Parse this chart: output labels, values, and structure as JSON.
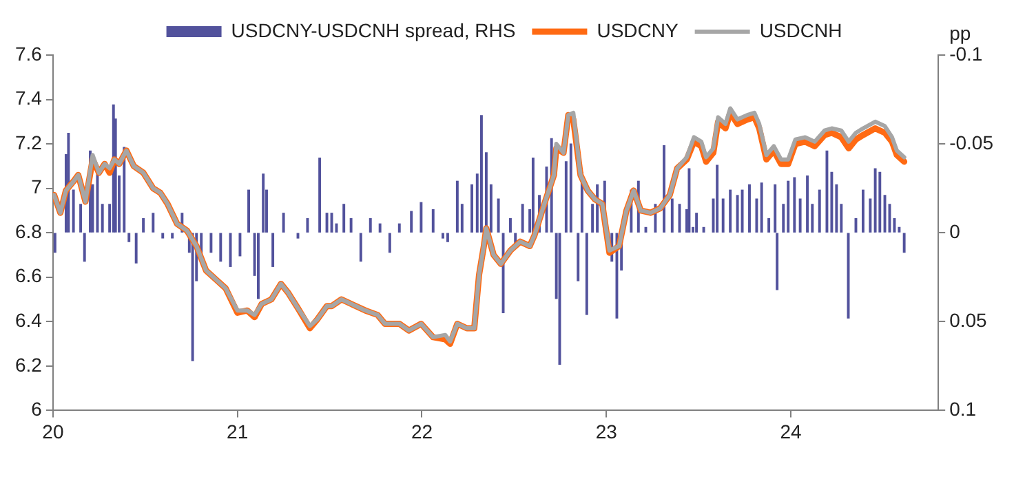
{
  "chart_data": {
    "type": "line",
    "legend": "top",
    "grid": false,
    "y2label": "pp",
    "xlim": [
      2020,
      2024.8
    ],
    "xticks": [
      {
        "value": 2020,
        "label": "20"
      },
      {
        "value": 2021,
        "label": "21"
      },
      {
        "value": 2022,
        "label": "22"
      },
      {
        "value": 2023,
        "label": "23"
      },
      {
        "value": 2024,
        "label": "24"
      }
    ],
    "ylim": [
      6,
      7.6
    ],
    "yticks": [
      6,
      6.2,
      6.4,
      6.6,
      6.8,
      7,
      7.2,
      7.4,
      7.6
    ],
    "y2lim": [
      0.1,
      -0.1
    ],
    "y2ticks": [
      -0.1,
      -0.05,
      0,
      0.05,
      0.1
    ],
    "x": [
      2020.006,
      2020.04,
      2020.07,
      2020.11,
      2020.137,
      2020.176,
      2020.215,
      2020.249,
      2020.28,
      2020.307,
      2020.333,
      2020.359,
      2020.398,
      2020.438,
      2020.49,
      2020.543,
      2020.582,
      2020.621,
      2020.673,
      2020.726,
      2020.778,
      2020.83,
      2020.883,
      2020.936,
      2021.0,
      2021.053,
      2021.093,
      2021.132,
      2021.184,
      2021.236,
      2021.275,
      2021.328,
      2021.393,
      2021.433,
      2021.485,
      2021.511,
      2021.564,
      2021.616,
      2021.694,
      2021.76,
      2021.8,
      2021.878,
      2021.93,
      2021.996,
      2022.061,
      2022.127,
      2022.153,
      2022.192,
      2022.244,
      2022.284,
      2022.31,
      2022.336,
      2022.349,
      2022.389,
      2022.428,
      2022.48,
      2022.533,
      2022.585,
      2022.611,
      2022.664,
      2022.716,
      2022.729,
      2022.768,
      2022.794,
      2022.821,
      2022.86,
      2022.899,
      2022.939,
      2022.978,
      2023.017,
      2023.069,
      2023.109,
      2023.148,
      2023.187,
      2023.24,
      2023.292,
      2023.344,
      2023.384,
      2023.436,
      2023.475,
      2023.515,
      2023.541,
      2023.58,
      2023.606,
      2023.646,
      2023.672,
      2023.711,
      2023.764,
      2023.803,
      2023.829,
      2023.868,
      2023.908,
      2023.947,
      2023.986,
      2024.025,
      2024.078,
      2024.13,
      2024.183,
      2024.222,
      2024.274,
      2024.314,
      2024.353,
      2024.392,
      2024.458,
      2024.51,
      2024.549,
      2024.575,
      2024.615
    ],
    "series": [
      {
        "name": "USDCNY-USDCNH spread, RHS",
        "type": "bar",
        "axis": "y2",
        "color": "#52529c",
        "x": [
          2020.011,
          2020.071,
          2020.084,
          2020.111,
          2020.15,
          2020.171,
          2020.202,
          2020.215,
          2020.241,
          2020.268,
          2020.307,
          2020.328,
          2020.339,
          2020.359,
          2020.386,
          2020.412,
          2020.451,
          2020.49,
          2020.543,
          2020.595,
          2020.647,
          2020.7,
          2020.739,
          2020.757,
          2020.778,
          2020.804,
          2020.857,
          2020.909,
          2020.962,
          2021.014,
          2021.061,
          2021.093,
          2021.113,
          2021.14,
          2021.158,
          2021.192,
          2021.25,
          2021.328,
          2021.38,
          2021.446,
          2021.485,
          2021.511,
          2021.537,
          2021.577,
          2021.616,
          2021.669,
          2021.721,
          2021.773,
          2021.826,
          2021.878,
          2021.943,
          2021.996,
          2022.061,
          2022.114,
          2022.14,
          2022.192,
          2022.218,
          2022.271,
          2022.3,
          2022.323,
          2022.349,
          2022.375,
          2022.415,
          2022.441,
          2022.48,
          2022.507,
          2022.546,
          2022.585,
          2022.603,
          2022.637,
          2022.676,
          2022.703,
          2022.729,
          2022.747,
          2022.782,
          2022.808,
          2022.847,
          2022.868,
          2022.894,
          2022.925,
          2022.951,
          2022.991,
          2023.03,
          2023.057,
          2023.082,
          2023.135,
          2023.174,
          2023.214,
          2023.266,
          2023.313,
          2023.357,
          2023.397,
          2023.436,
          2023.449,
          2023.47,
          2023.489,
          2023.528,
          2023.58,
          2023.601,
          2023.633,
          2023.672,
          2023.711,
          2023.737,
          2023.776,
          2023.815,
          2023.842,
          2023.881,
          2023.915,
          2023.926,
          2023.96,
          2023.986,
          2024.02,
          2024.051,
          2024.09,
          2024.117,
          2024.156,
          2024.196,
          2024.222,
          2024.248,
          2024.274,
          2024.312,
          2024.353,
          2024.392,
          2024.431,
          2024.458,
          2024.483,
          2024.51,
          2024.536,
          2024.562,
          2024.588,
          2024.615
        ],
        "values": [
          0.011,
          -0.044,
          -0.056,
          -0.024,
          -0.016,
          0.016,
          -0.046,
          -0.027,
          -0.034,
          -0.016,
          -0.016,
          -0.072,
          -0.064,
          -0.032,
          -0.048,
          0.005,
          0.017,
          -0.008,
          -0.011,
          0.003,
          0.003,
          -0.011,
          0.011,
          0.072,
          0.027,
          0.013,
          0.011,
          0.016,
          0.019,
          0.013,
          -0.024,
          0.024,
          0.037,
          -0.033,
          -0.024,
          0.019,
          -0.011,
          0.003,
          -0.008,
          -0.042,
          -0.011,
          -0.011,
          -0.005,
          -0.016,
          -0.008,
          0.016,
          -0.008,
          -0.005,
          0.011,
          -0.005,
          -0.012,
          -0.017,
          -0.013,
          0.003,
          0.005,
          -0.029,
          -0.016,
          -0.027,
          -0.033,
          -0.066,
          -0.045,
          -0.027,
          -0.019,
          0.045,
          -0.008,
          0.008,
          -0.016,
          -0.013,
          -0.042,
          -0.021,
          -0.037,
          -0.053,
          0.037,
          0.074,
          -0.04,
          -0.05,
          0.027,
          -0.034,
          0.046,
          -0.016,
          -0.027,
          -0.029,
          0.016,
          0.048,
          0.021,
          -0.024,
          -0.029,
          -0.003,
          -0.016,
          -0.049,
          -0.019,
          -0.016,
          -0.013,
          -0.036,
          -0.003,
          -0.011,
          -0.003,
          -0.019,
          -0.038,
          -0.019,
          -0.024,
          -0.021,
          -0.024,
          -0.027,
          -0.019,
          -0.028,
          -0.008,
          -0.027,
          0.032,
          -0.016,
          -0.029,
          -0.031,
          -0.019,
          -0.032,
          -0.016,
          -0.024,
          -0.046,
          -0.034,
          -0.027,
          -0.016,
          0.048,
          -0.008,
          -0.024,
          -0.019,
          -0.036,
          -0.034,
          -0.021,
          -0.016,
          -0.008,
          -0.003,
          0.011
        ]
      },
      {
        "name": "USDCNY",
        "color": "#ff6a13",
        "values": [
          6.97,
          6.89,
          6.99,
          7.03,
          7.06,
          6.94,
          7.13,
          7.07,
          7.11,
          7.07,
          7.13,
          7.11,
          7.17,
          7.1,
          7.07,
          7.0,
          6.98,
          6.93,
          6.84,
          6.81,
          6.74,
          6.63,
          6.59,
          6.55,
          6.44,
          6.45,
          6.42,
          6.48,
          6.5,
          6.57,
          6.53,
          6.46,
          6.37,
          6.41,
          6.47,
          6.47,
          6.5,
          6.48,
          6.45,
          6.43,
          6.39,
          6.39,
          6.36,
          6.39,
          6.33,
          6.32,
          6.3,
          6.39,
          6.37,
          6.37,
          6.61,
          6.74,
          6.82,
          6.7,
          6.66,
          6.72,
          6.76,
          6.74,
          6.79,
          6.93,
          7.06,
          7.18,
          7.16,
          7.33,
          7.31,
          7.06,
          6.99,
          6.95,
          6.93,
          6.71,
          6.74,
          6.9,
          6.99,
          6.9,
          6.89,
          6.91,
          6.97,
          7.09,
          7.13,
          7.21,
          7.19,
          7.12,
          7.16,
          7.3,
          7.27,
          7.34,
          7.29,
          7.31,
          7.32,
          7.27,
          7.13,
          7.17,
          7.11,
          7.11,
          7.2,
          7.21,
          7.19,
          7.24,
          7.25,
          7.23,
          7.18,
          7.22,
          7.24,
          7.27,
          7.25,
          7.21,
          7.15,
          7.12
        ]
      },
      {
        "name": "USDCNH",
        "color": "#a6a6a6",
        "values": [
          6.97,
          6.89,
          6.99,
          7.03,
          7.06,
          6.94,
          7.15,
          7.07,
          7.11,
          7.09,
          7.13,
          7.11,
          7.17,
          7.1,
          7.07,
          7.0,
          6.98,
          6.93,
          6.84,
          6.81,
          6.74,
          6.63,
          6.59,
          6.55,
          6.45,
          6.45,
          6.43,
          6.48,
          6.5,
          6.57,
          6.53,
          6.46,
          6.38,
          6.41,
          6.47,
          6.47,
          6.5,
          6.48,
          6.45,
          6.43,
          6.39,
          6.39,
          6.36,
          6.39,
          6.33,
          6.34,
          6.31,
          6.39,
          6.37,
          6.37,
          6.61,
          6.74,
          6.82,
          6.7,
          6.66,
          6.72,
          6.76,
          6.74,
          6.79,
          6.93,
          7.06,
          7.2,
          7.16,
          7.33,
          7.34,
          7.06,
          6.99,
          6.95,
          6.93,
          6.72,
          6.74,
          6.9,
          6.99,
          6.9,
          6.89,
          6.91,
          6.97,
          7.09,
          7.14,
          7.23,
          7.21,
          7.14,
          7.18,
          7.32,
          7.29,
          7.36,
          7.31,
          7.33,
          7.34,
          7.29,
          7.15,
          7.19,
          7.13,
          7.13,
          7.22,
          7.23,
          7.21,
          7.26,
          7.27,
          7.26,
          7.21,
          7.25,
          7.27,
          7.3,
          7.28,
          7.23,
          7.17,
          7.14
        ]
      }
    ]
  }
}
